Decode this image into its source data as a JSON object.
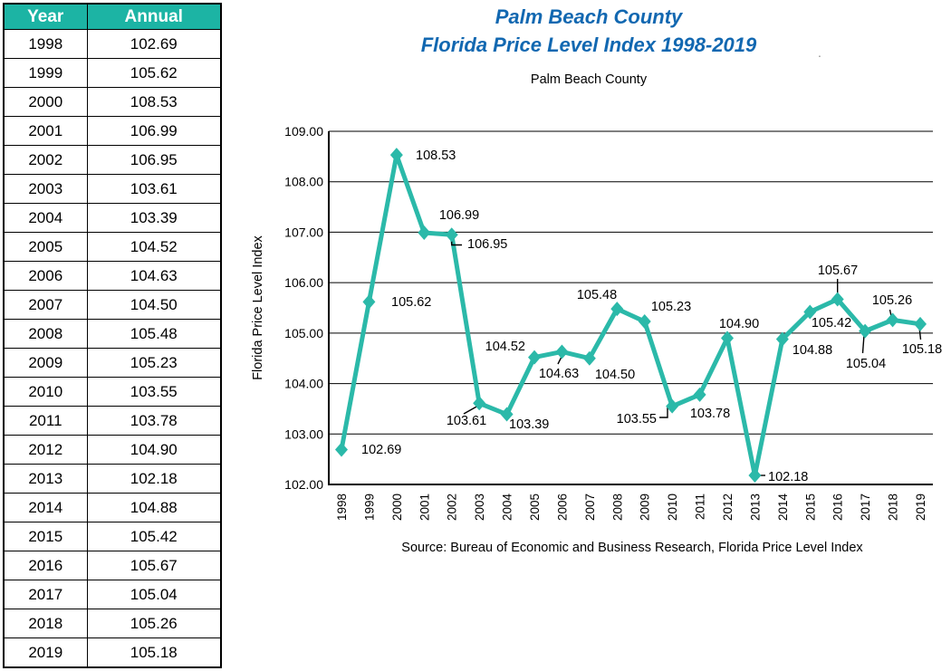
{
  "table": {
    "headers": [
      "Year",
      "Annual"
    ],
    "rows": [
      [
        "1998",
        "102.69"
      ],
      [
        "1999",
        "105.62"
      ],
      [
        "2000",
        "108.53"
      ],
      [
        "2001",
        "106.99"
      ],
      [
        "2002",
        "106.95"
      ],
      [
        "2003",
        "103.61"
      ],
      [
        "2004",
        "103.39"
      ],
      [
        "2005",
        "104.52"
      ],
      [
        "2006",
        "104.63"
      ],
      [
        "2007",
        "104.50"
      ],
      [
        "2008",
        "105.48"
      ],
      [
        "2009",
        "105.23"
      ],
      [
        "2010",
        "103.55"
      ],
      [
        "2011",
        "103.78"
      ],
      [
        "2012",
        "104.90"
      ],
      [
        "2013",
        "102.18"
      ],
      [
        "2014",
        "104.88"
      ],
      [
        "2015",
        "105.42"
      ],
      [
        "2016",
        "105.67"
      ],
      [
        "2017",
        "105.04"
      ],
      [
        "2018",
        "105.26"
      ],
      [
        "2019",
        "105.18"
      ]
    ]
  },
  "chart": {
    "title_line1": "Palm Beach County",
    "title_line2": "Florida Price Level Index 1998-2019",
    "title_period": ".",
    "subtitle": "Palm Beach County",
    "source": "Source: Bureau of Economic and  Business Research, Florida Price Level Index"
  },
  "chart_data": {
    "type": "line",
    "title": "Palm Beach County Florida Price Level Index 1998-2019",
    "subtitle": "Palm Beach County",
    "ylabel": "Florida Price Level Index",
    "categories": [
      1998,
      1999,
      2000,
      2001,
      2002,
      2003,
      2004,
      2005,
      2006,
      2007,
      2008,
      2009,
      2010,
      2011,
      2012,
      2013,
      2014,
      2015,
      2016,
      2017,
      2018,
      2019
    ],
    "values": [
      102.69,
      105.62,
      108.53,
      106.99,
      106.95,
      103.61,
      103.39,
      104.52,
      104.63,
      104.5,
      105.48,
      105.23,
      103.55,
      103.78,
      104.9,
      102.18,
      104.88,
      105.42,
      105.67,
      105.04,
      105.26,
      105.18
    ],
    "ylim": [
      102.0,
      109.0
    ],
    "ytick_step": 1.0,
    "grid": "horizontal",
    "legend": "none",
    "marker": "diamond",
    "line_color": "#2bb9a9",
    "data_labels": true
  },
  "colors": {
    "table_header_bg": "#1cb4a4",
    "table_header_text": "#ffffff",
    "title_blue": "#1268b1",
    "line_teal": "#2bb9a9",
    "axis_black": "#000000"
  }
}
